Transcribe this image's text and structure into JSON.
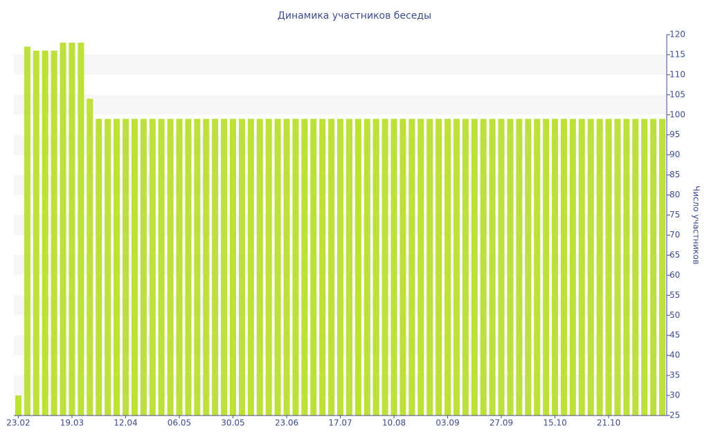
{
  "chart_data": {
    "type": "bar",
    "title": "Динамика участников беседы",
    "y_label": "Число участников",
    "categories": [
      "23.02",
      null,
      null,
      null,
      null,
      null,
      "19.03",
      null,
      null,
      null,
      null,
      null,
      "12.04",
      null,
      null,
      null,
      null,
      null,
      "06.05",
      null,
      null,
      null,
      null,
      null,
      "30.05",
      null,
      null,
      null,
      null,
      null,
      "23.06",
      null,
      null,
      null,
      null,
      null,
      "17.07",
      null,
      null,
      null,
      null,
      null,
      "10.08",
      null,
      null,
      null,
      null,
      null,
      "03.09",
      null,
      null,
      null,
      null,
      null,
      "27.09",
      null,
      null,
      null,
      null,
      null,
      "15.10",
      null,
      null,
      null,
      null,
      null,
      "21.10",
      null,
      null,
      null,
      null,
      null,
      null
    ],
    "values": [
      30,
      117,
      116,
      116,
      116,
      118,
      118,
      118,
      104,
      99,
      99,
      99,
      99,
      99,
      99,
      99,
      99,
      99,
      99,
      99,
      99,
      99,
      99,
      99,
      99,
      99,
      99,
      99,
      99,
      99,
      99,
      99,
      99,
      99,
      99,
      99,
      99,
      99,
      99,
      99,
      99,
      99,
      99,
      99,
      99,
      99,
      99,
      99,
      99,
      99,
      99,
      99,
      99,
      99,
      99,
      99,
      99,
      99,
      99,
      99,
      99,
      99,
      99,
      99,
      99,
      99,
      99,
      99,
      99,
      99,
      99,
      99,
      99
    ],
    "color": "#bde13a",
    "ylim": [
      25,
      120
    ],
    "yticks": [
      25,
      30,
      35,
      40,
      45,
      50,
      55,
      60,
      65,
      70,
      75,
      80,
      85,
      90,
      95,
      100,
      105,
      110,
      115,
      120
    ],
    "grid": true
  }
}
